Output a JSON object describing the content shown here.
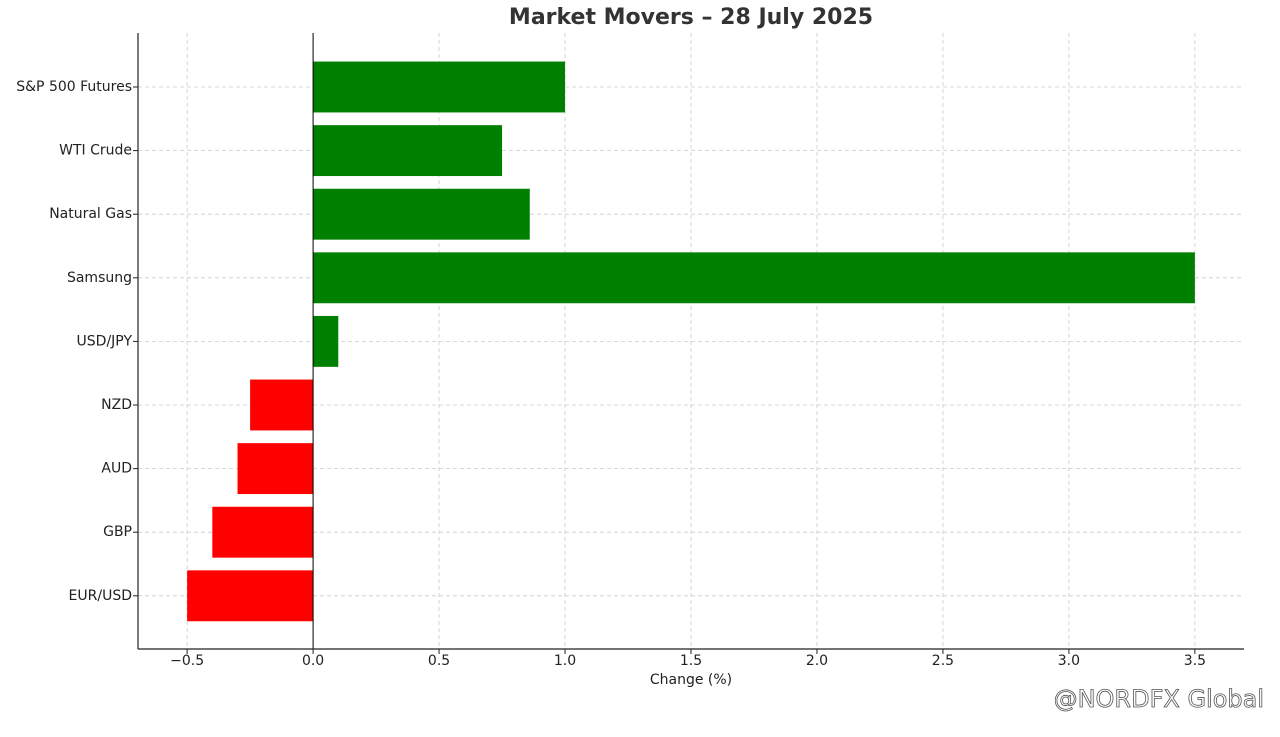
{
  "chart_data": {
    "type": "bar",
    "orientation": "horizontal",
    "title": "Market Movers – 28 July 2025",
    "x_label": "Change (%)",
    "categories": [
      "S&P 500 Futures",
      "WTI Crude",
      "Natural Gas",
      "Samsung",
      "USD/JPY",
      "NZD",
      "AUD",
      "GBP",
      "EUR/USD"
    ],
    "values": [
      1.0,
      0.75,
      0.86,
      3.5,
      0.1,
      -0.25,
      -0.3,
      -0.4,
      -0.5
    ],
    "colors": [
      "#008000",
      "#008000",
      "#008000",
      "#008000",
      "#008000",
      "#ff0000",
      "#ff0000",
      "#ff0000",
      "#ff0000"
    ],
    "xlim": [
      -0.695,
      3.695
    ],
    "xticks": [
      {
        "value": -0.5,
        "label": "−0.5"
      },
      {
        "value": 0,
        "label": "0.0"
      },
      0.5,
      {
        "value": 1,
        "label": "1.0"
      },
      1.5,
      {
        "value": 2,
        "label": "2.0"
      },
      2.5,
      {
        "value": 3,
        "label": "3.0"
      },
      3.5
    ],
    "grid": true,
    "watermark": "@NORDFX Global"
  }
}
